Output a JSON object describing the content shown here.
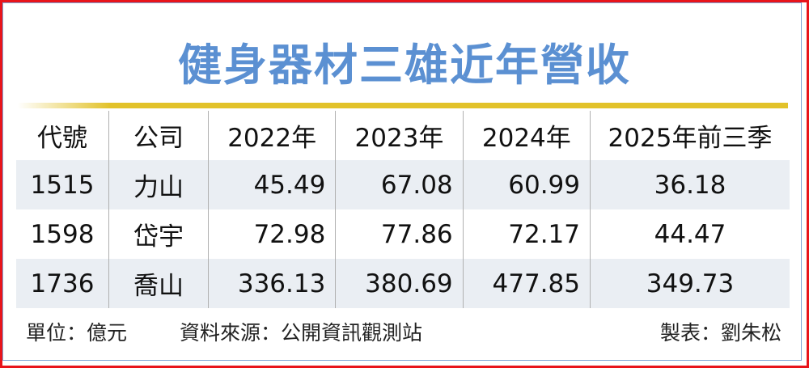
{
  "title": "健身器材三雄近年營收",
  "chart_data": {
    "type": "table",
    "title": "健身器材三雄近年營收",
    "columns": [
      "代號",
      "公司",
      "2022年",
      "2023年",
      "2024年",
      "2025年前三季"
    ],
    "rows": [
      [
        "1515",
        "力山",
        "45.49",
        "67.08",
        "60.99",
        "36.18"
      ],
      [
        "1598",
        "岱宇",
        "72.98",
        "77.86",
        "72.17",
        "44.47"
      ],
      [
        "1736",
        "喬山",
        "336.13",
        "380.69",
        "477.85",
        "349.73"
      ]
    ]
  },
  "footer": {
    "unit": "單位：億元",
    "source": "資料來源：公開資訊觀測站",
    "credit": "製表：劉朱松"
  },
  "colors": {
    "title": "#5b90d2",
    "rule": "#e2c22a",
    "border": "#e8141b",
    "row_shade": "#eaeef3"
  }
}
